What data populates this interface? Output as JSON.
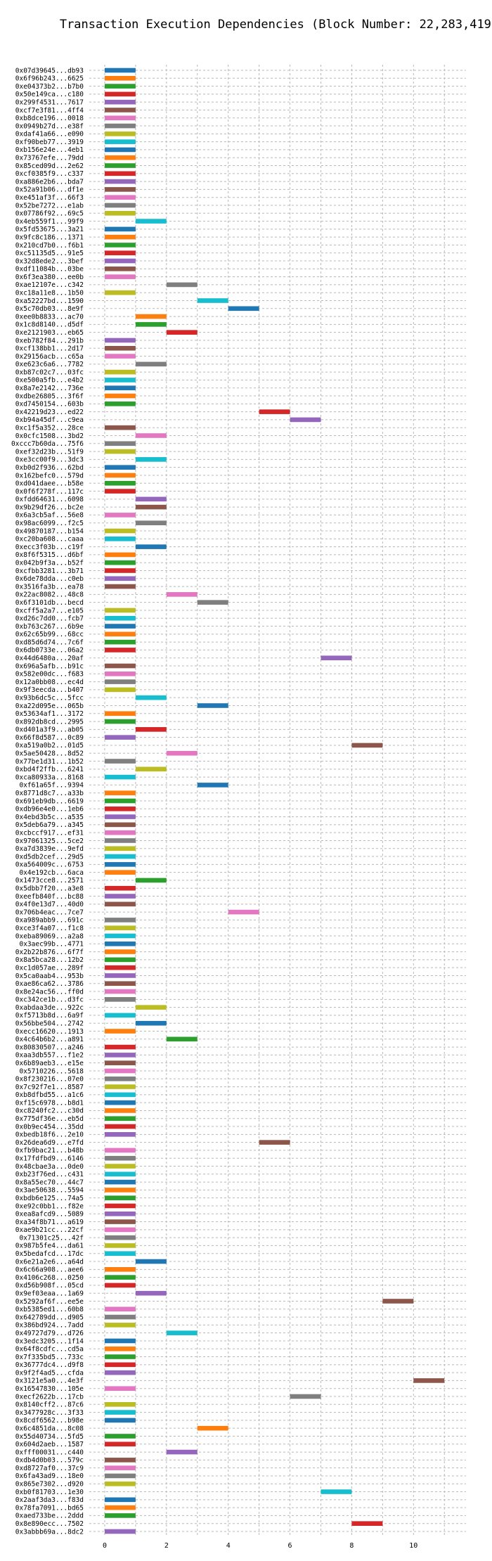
{
  "chart_data": {
    "type": "bar",
    "orientation": "horizontal",
    "title": "Transaction Execution Dependencies (Block Number: 22,283,419)",
    "xlabel": "",
    "ylabel": "",
    "xlim": [
      -0.5,
      11.7
    ],
    "xticks": [
      0,
      2,
      4,
      6,
      8,
      10
    ],
    "grid": true,
    "colors": [
      "#1f77b4",
      "#ff7f0e",
      "#2ca02c",
      "#d62728",
      "#9467bd",
      "#8c564b",
      "#e377c2",
      "#7f7f7f",
      "#bcbd22",
      "#17becf"
    ],
    "transactions": [
      {
        "label": "0x07d39645...db93",
        "start": 0,
        "end": 1
      },
      {
        "label": "0x6f96b243...6625",
        "start": 0,
        "end": 1
      },
      {
        "label": "0xe04373b2...b7b0",
        "start": 0,
        "end": 1
      },
      {
        "label": "0x50e149ca...c180",
        "start": 0,
        "end": 1
      },
      {
        "label": "0x299f4531...7617",
        "start": 0,
        "end": 1
      },
      {
        "label": "0xcf7e3f81...4ff4",
        "start": 0,
        "end": 1
      },
      {
        "label": "0xb8dce196...0018",
        "start": 0,
        "end": 1
      },
      {
        "label": "0x0949b27d...e38f",
        "start": 0,
        "end": 1
      },
      {
        "label": "0xdaf41a66...e090",
        "start": 0,
        "end": 1
      },
      {
        "label": "0xf90beb77...3919",
        "start": 0,
        "end": 1
      },
      {
        "label": "0xb156e24e...4eb1",
        "start": 0,
        "end": 1
      },
      {
        "label": "0x73767efe...79dd",
        "start": 0,
        "end": 1
      },
      {
        "label": "0x85ced09d...2e62",
        "start": 0,
        "end": 1
      },
      {
        "label": "0xcf0385f9...c337",
        "start": 0,
        "end": 1
      },
      {
        "label": "0xa886e2b6...bda7",
        "start": 0,
        "end": 1
      },
      {
        "label": "0x52a91b06...df1e",
        "start": 0,
        "end": 1
      },
      {
        "label": "0xe451af3f...66f3",
        "start": 0,
        "end": 1
      },
      {
        "label": "0x52be7272...e1ab",
        "start": 0,
        "end": 1
      },
      {
        "label": "0x07786f92...69c5",
        "start": 0,
        "end": 1
      },
      {
        "label": "0x4eb559f1...99f9",
        "start": 1,
        "end": 2
      },
      {
        "label": "0x5fd53675...3a21",
        "start": 0,
        "end": 1
      },
      {
        "label": "0x9fc8c186...1371",
        "start": 0,
        "end": 1
      },
      {
        "label": "0x210cd7b0...f6b1",
        "start": 0,
        "end": 1
      },
      {
        "label": "0xc51135d5...91e5",
        "start": 0,
        "end": 1
      },
      {
        "label": "0x32d8ede2...3bef",
        "start": 0,
        "end": 1
      },
      {
        "label": "0xdf11084b...03be",
        "start": 0,
        "end": 1
      },
      {
        "label": "0x6f3ea380...ee0b",
        "start": 0,
        "end": 1
      },
      {
        "label": "0xae12107e...c342",
        "start": 2,
        "end": 3
      },
      {
        "label": "0xc18a11e8...1b50",
        "start": 0,
        "end": 1
      },
      {
        "label": "0xa52227bd...1590",
        "start": 3,
        "end": 4
      },
      {
        "label": "0x5c70db03...8e9f",
        "start": 4,
        "end": 5
      },
      {
        "label": "0xee0b8833...ac70",
        "start": 1,
        "end": 2
      },
      {
        "label": "0x1c8d8140...d5df",
        "start": 1,
        "end": 2
      },
      {
        "label": "0xe2121903...eb65",
        "start": 2,
        "end": 3
      },
      {
        "label": "0xeb782f84...291b",
        "start": 0,
        "end": 1
      },
      {
        "label": "0xcf138bb1...2d17",
        "start": 0,
        "end": 1
      },
      {
        "label": "0x29156acb...c65a",
        "start": 0,
        "end": 1
      },
      {
        "label": "0xe623c6a6...7782",
        "start": 1,
        "end": 2
      },
      {
        "label": "0xb87c02c7...03fc",
        "start": 0,
        "end": 1
      },
      {
        "label": "0xe500a5fb...e4b2",
        "start": 0,
        "end": 1
      },
      {
        "label": "0x8a7e2142...736e",
        "start": 0,
        "end": 1
      },
      {
        "label": "0xdbe26805...3f6f",
        "start": 0,
        "end": 1
      },
      {
        "label": "0xd7450154...603b",
        "start": 0,
        "end": 1
      },
      {
        "label": "0x42219d23...ed22",
        "start": 5,
        "end": 6
      },
      {
        "label": "0xb94a45df...c9ea",
        "start": 6,
        "end": 7
      },
      {
        "label": "0xc1f5a352...28ce",
        "start": 0,
        "end": 1
      },
      {
        "label": "0x0cfc1508...3bd2",
        "start": 1,
        "end": 2
      },
      {
        "label": "0xccc7b60da...75f6",
        "start": 0,
        "end": 1
      },
      {
        "label": "0xef32d23b...51f9",
        "start": 0,
        "end": 1
      },
      {
        "label": "0xe3cc00f9...3dc3",
        "start": 1,
        "end": 2
      },
      {
        "label": "0xb0d2f936...62bd",
        "start": 0,
        "end": 1
      },
      {
        "label": "0x162befc0...579d",
        "start": 0,
        "end": 1
      },
      {
        "label": "0xd041daee...b58e",
        "start": 0,
        "end": 1
      },
      {
        "label": "0x0f6f278f...117c",
        "start": 0,
        "end": 1
      },
      {
        "label": "0xfdd64631...6098",
        "start": 1,
        "end": 2
      },
      {
        "label": "0x9b29df26...bc2e",
        "start": 1,
        "end": 2
      },
      {
        "label": "0x6a3cb5af...56e8",
        "start": 0,
        "end": 1
      },
      {
        "label": "0x98ac6099...f2c5",
        "start": 1,
        "end": 2
      },
      {
        "label": "0x49870187...b154",
        "start": 0,
        "end": 1
      },
      {
        "label": "0xc20ba608...caaa",
        "start": 0,
        "end": 1
      },
      {
        "label": "0xecc3f03b...c19f",
        "start": 1,
        "end": 2
      },
      {
        "label": "0x8f6f5315...d6bf",
        "start": 0,
        "end": 1
      },
      {
        "label": "0x042b9f3a...b52f",
        "start": 0,
        "end": 1
      },
      {
        "label": "0xcfbb3281...3b71",
        "start": 0,
        "end": 1
      },
      {
        "label": "0x6de78dda...c0eb",
        "start": 0,
        "end": 1
      },
      {
        "label": "0x3516fa3b...ea78",
        "start": 0,
        "end": 1
      },
      {
        "label": "0x22ac8082...48c8",
        "start": 2,
        "end": 3
      },
      {
        "label": "0x6f3101db...becd",
        "start": 3,
        "end": 4
      },
      {
        "label": "0xcff5a2a7...e105",
        "start": 0,
        "end": 1
      },
      {
        "label": "0xd26c7dd0...fcb7",
        "start": 0,
        "end": 1
      },
      {
        "label": "0xb763c267...6b9e",
        "start": 0,
        "end": 1
      },
      {
        "label": "0x62c65b99...68cc",
        "start": 0,
        "end": 1
      },
      {
        "label": "0xd85d6d74...7c6f",
        "start": 0,
        "end": 1
      },
      {
        "label": "0x6db0733e...06a2",
        "start": 0,
        "end": 1
      },
      {
        "label": "0x44d6480a...20af",
        "start": 7,
        "end": 8
      },
      {
        "label": "0x696a5afb...b91c",
        "start": 0,
        "end": 1
      },
      {
        "label": "0x582e00dc...f683",
        "start": 0,
        "end": 1
      },
      {
        "label": "0x12a0bb08...ec4d",
        "start": 0,
        "end": 1
      },
      {
        "label": "0x9f3eecda...b407",
        "start": 0,
        "end": 1
      },
      {
        "label": "0x93b6dc5c...5fcc",
        "start": 1,
        "end": 2
      },
      {
        "label": "0xa22d095e...065b",
        "start": 3,
        "end": 4
      },
      {
        "label": "0x53634af1...3172",
        "start": 0,
        "end": 1
      },
      {
        "label": "0x892db8cd...2995",
        "start": 0,
        "end": 1
      },
      {
        "label": "0xd401a3f9...ab05",
        "start": 1,
        "end": 2
      },
      {
        "label": "0x66f8d587...0c89",
        "start": 0,
        "end": 1
      },
      {
        "label": "0xa519a0b2...01d5",
        "start": 8,
        "end": 9
      },
      {
        "label": "0x5ae50428...8d52",
        "start": 2,
        "end": 3
      },
      {
        "label": "0x77be1d31...1b52",
        "start": 0,
        "end": 1
      },
      {
        "label": "0xbd4f2ffb...6241",
        "start": 1,
        "end": 2
      },
      {
        "label": "0xca80933a...8168",
        "start": 0,
        "end": 1
      },
      {
        "label": "0xf61a65f...9394",
        "start": 3,
        "end": 4
      },
      {
        "label": "0x8771d8c7...a33b",
        "start": 0,
        "end": 1
      },
      {
        "label": "0x691eb9db...6619",
        "start": 0,
        "end": 1
      },
      {
        "label": "0xdb96e4e0...1eb6",
        "start": 0,
        "end": 1
      },
      {
        "label": "0x4ebd3b5c...a535",
        "start": 0,
        "end": 1
      },
      {
        "label": "0x5deb6a79...a345",
        "start": 0,
        "end": 1
      },
      {
        "label": "0xcbccf917...ef31",
        "start": 0,
        "end": 1
      },
      {
        "label": "0x97061325...5ce2",
        "start": 0,
        "end": 1
      },
      {
        "label": "0xa7d3839e...9efd",
        "start": 0,
        "end": 1
      },
      {
        "label": "0xd5db2cef...29d5",
        "start": 0,
        "end": 1
      },
      {
        "label": "0xa564009c...6753",
        "start": 0,
        "end": 1
      },
      {
        "label": "0x4e192cb...6aca",
        "start": 0,
        "end": 1
      },
      {
        "label": "0x1473cce8...2571",
        "start": 1,
        "end": 2
      },
      {
        "label": "0x5dbb7f20...a3e8",
        "start": 0,
        "end": 1
      },
      {
        "label": "0xeefb840f...bc88",
        "start": 0,
        "end": 1
      },
      {
        "label": "0x4f0e13d7...40d0",
        "start": 0,
        "end": 1
      },
      {
        "label": "0x706b4eac...7ce7",
        "start": 4,
        "end": 5
      },
      {
        "label": "0xa989abb9...691c",
        "start": 0,
        "end": 1
      },
      {
        "label": "0xce3f4a07...f1c8",
        "start": 0,
        "end": 1
      },
      {
        "label": "0xeba89069...a2a8",
        "start": 0,
        "end": 1
      },
      {
        "label": "0x3aec99b...4771",
        "start": 0,
        "end": 1
      },
      {
        "label": "0x2b22b876...6f7f",
        "start": 0,
        "end": 1
      },
      {
        "label": "0x8a5bca28...12b2",
        "start": 0,
        "end": 1
      },
      {
        "label": "0xc1d057ae...289f",
        "start": 0,
        "end": 1
      },
      {
        "label": "0x5ca0aab4...953b",
        "start": 0,
        "end": 1
      },
      {
        "label": "0xae86ca62...3786",
        "start": 0,
        "end": 1
      },
      {
        "label": "0x8e24ac56...ff0d",
        "start": 0,
        "end": 1
      },
      {
        "label": "0xc342ce1b...d3fc",
        "start": 0,
        "end": 1
      },
      {
        "label": "0xabdaa3de...922c",
        "start": 1,
        "end": 2
      },
      {
        "label": "0xf5713b8d...6a9f",
        "start": 0,
        "end": 1
      },
      {
        "label": "0x56bbe504...2742",
        "start": 1,
        "end": 2
      },
      {
        "label": "0xecc16620...1913",
        "start": 0,
        "end": 1
      },
      {
        "label": "0x4c64b6b2...a891",
        "start": 2,
        "end": 3
      },
      {
        "label": "0x80830507...a246",
        "start": 0,
        "end": 1
      },
      {
        "label": "0xaa3db557...f1e2",
        "start": 0,
        "end": 1
      },
      {
        "label": "0x6b89aeb3...e15e",
        "start": 0,
        "end": 1
      },
      {
        "label": "0x5710226...5618",
        "start": 0,
        "end": 1
      },
      {
        "label": "0x8f230216...07e0",
        "start": 0,
        "end": 1
      },
      {
        "label": "0x7c92f7e1...8587",
        "start": 0,
        "end": 1
      },
      {
        "label": "0xb8dfbd55...a1c6",
        "start": 0,
        "end": 1
      },
      {
        "label": "0xf15c6978...b8d1",
        "start": 0,
        "end": 1
      },
      {
        "label": "0xc8240fc2...c30d",
        "start": 0,
        "end": 1
      },
      {
        "label": "0x775df36e...eb5d",
        "start": 0,
        "end": 1
      },
      {
        "label": "0x0b9ec454...35dd",
        "start": 0,
        "end": 1
      },
      {
        "label": "0xbedb18f6...2e10",
        "start": 0,
        "end": 1
      },
      {
        "label": "0x26dea6d9...e7fd",
        "start": 5,
        "end": 6
      },
      {
        "label": "0xfb9bac21...b48b",
        "start": 0,
        "end": 1
      },
      {
        "label": "0x17fdfbd9...6146",
        "start": 0,
        "end": 1
      },
      {
        "label": "0x48cbae3a...0de0",
        "start": 0,
        "end": 1
      },
      {
        "label": "0xb23f76ed...c431",
        "start": 0,
        "end": 1
      },
      {
        "label": "0x8a55ec70...44c7",
        "start": 0,
        "end": 1
      },
      {
        "label": "0x3ae50638...5594",
        "start": 0,
        "end": 1
      },
      {
        "label": "0xbdb6e125...74a5",
        "start": 0,
        "end": 1
      },
      {
        "label": "0xe92c0bb1...f82e",
        "start": 0,
        "end": 1
      },
      {
        "label": "0xea8afcd9...5089",
        "start": 0,
        "end": 1
      },
      {
        "label": "0xa34f8b71...a619",
        "start": 0,
        "end": 1
      },
      {
        "label": "0xae9b21cc...22cf",
        "start": 0,
        "end": 1
      },
      {
        "label": "0x71301c25...42f",
        "start": 0,
        "end": 1
      },
      {
        "label": "0x987b5fe4...da61",
        "start": 0,
        "end": 1
      },
      {
        "label": "0x5bedafcd...17dc",
        "start": 0,
        "end": 1
      },
      {
        "label": "0x6e21a2e6...a64d",
        "start": 1,
        "end": 2
      },
      {
        "label": "0x6c66a908...aee6",
        "start": 0,
        "end": 1
      },
      {
        "label": "0x4106c268...0250",
        "start": 0,
        "end": 1
      },
      {
        "label": "0xd56b908f...05cd",
        "start": 0,
        "end": 1
      },
      {
        "label": "0x9ef03eaa...1a69",
        "start": 1,
        "end": 2
      },
      {
        "label": "0x5292af6f...ee5e",
        "start": 9,
        "end": 10
      },
      {
        "label": "0xb5385ed1...60b8",
        "start": 0,
        "end": 1
      },
      {
        "label": "0x642789dd...d905",
        "start": 0,
        "end": 1
      },
      {
        "label": "0x386bd924...7add",
        "start": 0,
        "end": 1
      },
      {
        "label": "0x49727d79...d726",
        "start": 2,
        "end": 3
      },
      {
        "label": "0x3edc3205...1f14",
        "start": 0,
        "end": 1
      },
      {
        "label": "0x64f8cdfc...cd5a",
        "start": 0,
        "end": 1
      },
      {
        "label": "0x7f335bd5...733c",
        "start": 0,
        "end": 1
      },
      {
        "label": "0x36777dc4...d9f8",
        "start": 0,
        "end": 1
      },
      {
        "label": "0x9f2f4ad5...cfda",
        "start": 0,
        "end": 1
      },
      {
        "label": "0x3121e5a0...4e3f",
        "start": 10,
        "end": 11
      },
      {
        "label": "0x16547830...105e",
        "start": 0,
        "end": 1
      },
      {
        "label": "0xecf2622b...17cb",
        "start": 6,
        "end": 7
      },
      {
        "label": "0x8140cff2...87c6",
        "start": 0,
        "end": 1
      },
      {
        "label": "0x3477928c...3f33",
        "start": 0,
        "end": 1
      },
      {
        "label": "0x8cdf6562...b98e",
        "start": 0,
        "end": 1
      },
      {
        "label": "0x6c4851da...8c08",
        "start": 3,
        "end": 4
      },
      {
        "label": "0x55d40734...5fd5",
        "start": 0,
        "end": 1
      },
      {
        "label": "0x604d2aeb...1587",
        "start": 0,
        "end": 1
      },
      {
        "label": "0xfff00031...c440",
        "start": 2,
        "end": 3
      },
      {
        "label": "0xdb4d0b03...579c",
        "start": 0,
        "end": 1
      },
      {
        "label": "0xd8727af0...37c9",
        "start": 0,
        "end": 1
      },
      {
        "label": "0x6fa43ad9...18e0",
        "start": 0,
        "end": 1
      },
      {
        "label": "0x865e7302...d920",
        "start": 0,
        "end": 1
      },
      {
        "label": "0xb0f81703...1e30",
        "start": 7,
        "end": 8
      },
      {
        "label": "0x2aaf3da3...f83d",
        "start": 0,
        "end": 1
      },
      {
        "label": "0x78fa7091...bd65",
        "start": 0,
        "end": 1
      },
      {
        "label": "0xaed733be...2ddd",
        "start": 0,
        "end": 1
      },
      {
        "label": "0x8e890ecc...7502",
        "start": 8,
        "end": 9
      },
      {
        "label": "0x3abbb69a...8dc2",
        "start": 0,
        "end": 1
      }
    ]
  }
}
